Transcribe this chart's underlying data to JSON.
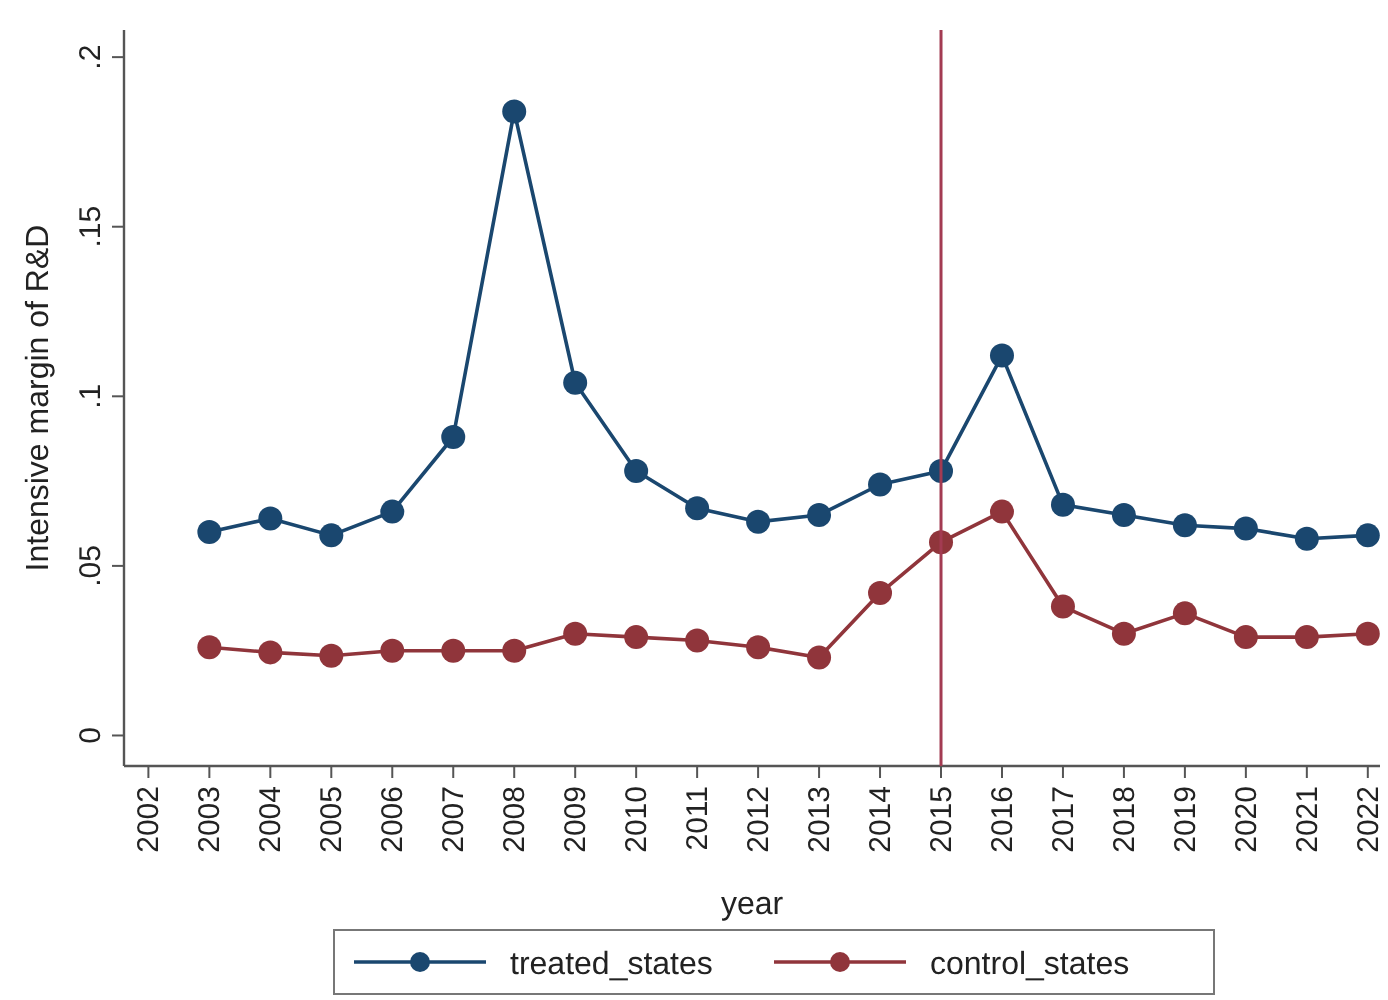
{
  "chart_data": {
    "type": "line",
    "xlabel": "year",
    "ylabel": "Intensive margin of R&D",
    "x": [
      2003,
      2004,
      2005,
      2006,
      2007,
      2008,
      2009,
      2010,
      2011,
      2012,
      2013,
      2014,
      2015,
      2016,
      2017,
      2018,
      2019,
      2020,
      2021,
      2022
    ],
    "series": [
      {
        "name": "treated_states",
        "color": "#1a476f",
        "values": [
          0.06,
          0.064,
          0.059,
          0.066,
          0.088,
          0.184,
          0.104,
          0.078,
          0.067,
          0.063,
          0.065,
          0.074,
          0.078,
          0.112,
          0.068,
          0.065,
          0.062,
          0.061,
          0.058,
          0.059
        ]
      },
      {
        "name": "control_states",
        "color": "#90353b",
        "values": [
          0.026,
          0.0245,
          0.0235,
          0.025,
          0.025,
          0.025,
          0.03,
          0.029,
          0.028,
          0.026,
          0.023,
          0.042,
          0.057,
          0.066,
          0.038,
          0.03,
          0.036,
          0.029,
          0.029,
          0.03
        ]
      }
    ],
    "xlim": [
      2001.6,
      2022.2
    ],
    "xticks": [
      2002,
      2003,
      2004,
      2005,
      2006,
      2007,
      2008,
      2009,
      2010,
      2011,
      2012,
      2013,
      2014,
      2015,
      2016,
      2017,
      2018,
      2019,
      2020,
      2021,
      2022
    ],
    "ylim": [
      -0.009,
      0.208
    ],
    "yticks": [
      {
        "value": 0,
        "label": "0"
      },
      {
        "value": 0.05,
        "label": ".05"
      },
      {
        "value": 0.1,
        "label": ".1"
      },
      {
        "value": 0.15,
        "label": ".15"
      },
      {
        "value": 0.2,
        "label": ".2"
      }
    ],
    "ref_lines": [
      {
        "axis": "x",
        "value": 2015,
        "color": "#a33b52"
      }
    ],
    "marker": "circle",
    "line_style": "solid",
    "legend": "bottom"
  }
}
